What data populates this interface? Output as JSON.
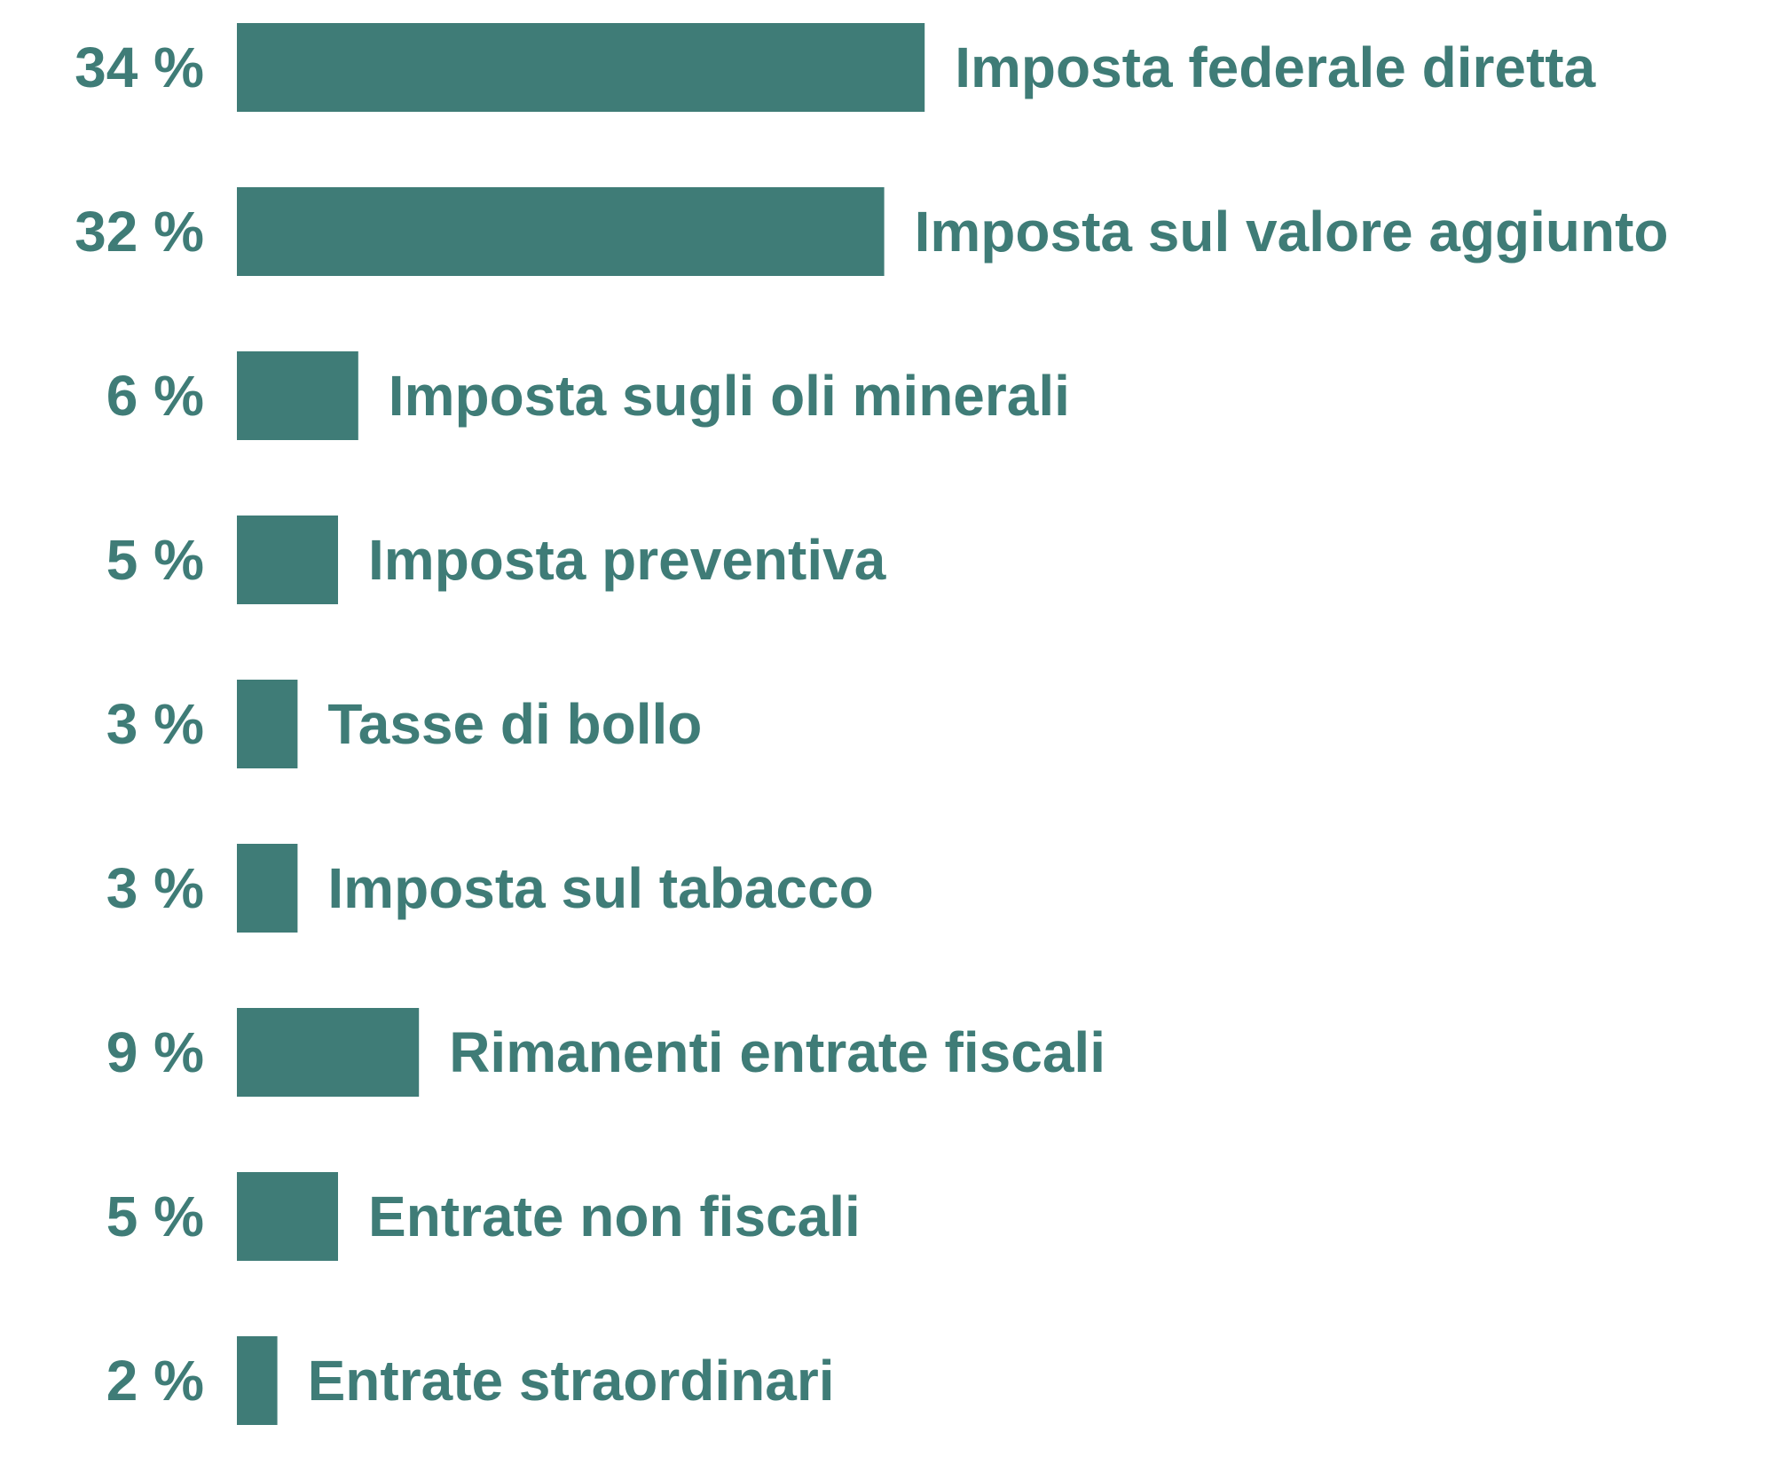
{
  "chart_data": {
    "type": "bar",
    "orientation": "horizontal",
    "categories": [
      "Imposta federale diretta",
      "Imposta sul valore aggiunto",
      "Imposta sugli oli minerali",
      "Imposta preventiva",
      "Tasse di bollo",
      "Imposta sul tabacco",
      "Rimanenti entrate fiscali",
      "Entrate non fiscali",
      "Entrate straordinari"
    ],
    "values": [
      34,
      32,
      6,
      5,
      3,
      3,
      9,
      5,
      2
    ],
    "value_labels": [
      "34 %",
      "32 %",
      "6 %",
      "5 %",
      "3 %",
      "3 %",
      "9 %",
      "5 %",
      "2 %"
    ],
    "unit": "%",
    "grid": false,
    "legend": "none",
    "colors": {
      "bar": "#3f7c77",
      "text": "#3f7c77",
      "value_text": "#3f7c77"
    }
  }
}
